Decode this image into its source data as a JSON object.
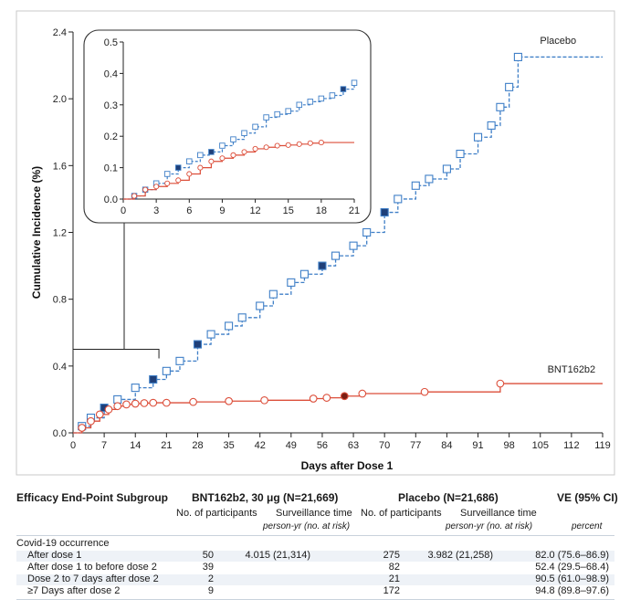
{
  "chart_data": {
    "type": "line",
    "xlabel": "Days after Dose 1",
    "ylabel": "Cumulative Incidence (%)",
    "xticks": [
      0,
      7,
      14,
      21,
      28,
      35,
      42,
      49,
      56,
      63,
      70,
      77,
      84,
      91,
      98,
      105,
      112,
      119
    ],
    "yticks": [
      "0.0",
      "0.4",
      "0.8",
      "1.2",
      "1.6",
      "2.0",
      "2.4"
    ],
    "xlim": [
      0,
      119
    ],
    "ylim": [
      0,
      2.4
    ],
    "series": [
      {
        "name": "Placebo",
        "color": "#3f7fc7",
        "x": [
          0,
          2,
          4,
          7,
          10,
          14,
          18,
          21,
          24,
          28,
          31,
          35,
          38,
          42,
          45,
          49,
          52,
          56,
          59,
          63,
          66,
          70,
          73,
          77,
          80,
          84,
          87,
          91,
          94,
          96,
          98,
          100,
          119
        ],
        "y": [
          0,
          0.04,
          0.09,
          0.15,
          0.2,
          0.27,
          0.32,
          0.37,
          0.43,
          0.53,
          0.59,
          0.64,
          0.69,
          0.76,
          0.83,
          0.9,
          0.95,
          1.0,
          1.06,
          1.12,
          1.2,
          1.32,
          1.4,
          1.48,
          1.52,
          1.58,
          1.67,
          1.77,
          1.84,
          1.95,
          2.07,
          2.25,
          2.25
        ]
      },
      {
        "name": "BNT162b2",
        "color": "#dc4e3a",
        "x": [
          0,
          2,
          4,
          6,
          8,
          10,
          12,
          14,
          16,
          18,
          21,
          27,
          35,
          43,
          54,
          57,
          61,
          65,
          79,
          96,
          119
        ],
        "y": [
          0,
          0.03,
          0.07,
          0.11,
          0.14,
          0.16,
          0.17,
          0.175,
          0.178,
          0.18,
          0.18,
          0.185,
          0.19,
          0.195,
          0.205,
          0.21,
          0.22,
          0.235,
          0.245,
          0.295,
          0.295
        ]
      }
    ],
    "inset": {
      "xlim": [
        0,
        21
      ],
      "ylim": [
        0,
        0.5
      ],
      "xticks": [
        0,
        3,
        6,
        9,
        12,
        15,
        18,
        21
      ],
      "yticks": [
        "0.0",
        "0.1",
        "0.2",
        "0.3",
        "0.4",
        "0.5"
      ],
      "series": [
        {
          "name": "Placebo",
          "x": [
            0,
            1,
            2,
            3,
            4,
            5,
            6,
            7,
            8,
            9,
            10,
            11,
            12,
            13,
            14,
            15,
            16,
            17,
            18,
            19,
            20,
            21
          ],
          "y": [
            0,
            0.01,
            0.03,
            0.05,
            0.08,
            0.1,
            0.12,
            0.14,
            0.15,
            0.17,
            0.19,
            0.21,
            0.23,
            0.26,
            0.27,
            0.28,
            0.3,
            0.31,
            0.32,
            0.33,
            0.35,
            0.37
          ]
        },
        {
          "name": "BNT162b2",
          "x": [
            0,
            1,
            2,
            3,
            4,
            5,
            6,
            7,
            8,
            9,
            10,
            11,
            12,
            13,
            14,
            15,
            16,
            17,
            18,
            21
          ],
          "y": [
            0,
            0.01,
            0.03,
            0.04,
            0.05,
            0.06,
            0.08,
            0.1,
            0.12,
            0.13,
            0.14,
            0.15,
            0.16,
            0.165,
            0.17,
            0.172,
            0.175,
            0.178,
            0.18,
            0.18
          ]
        }
      ]
    }
  },
  "table": {
    "subgroup_header": "Efficacy End-Point Subgroup",
    "bnt_header": "BNT162b2, 30 μg (N=21,669)",
    "placebo_header": "Placebo (N=21,686)",
    "ve_header": "VE (95% CI)",
    "participants_label": "No. of participants",
    "surveillance_label": "Surveillance time",
    "person_yr_label": "person-yr (no. at risk)",
    "percent_label": "percent",
    "section_label": "Covid-19 occurrence",
    "rows": [
      {
        "label": "After dose 1",
        "bnt_n": "50",
        "bnt_time": "4.015 (21,314)",
        "pl_n": "275",
        "pl_time": "3.982 (21,258)",
        "ve": "82.0 (75.6–86.9)"
      },
      {
        "label": "After dose 1 to before dose 2",
        "bnt_n": "39",
        "bnt_time": "",
        "pl_n": "82",
        "pl_time": "",
        "ve": "52.4 (29.5–68.4)"
      },
      {
        "label": "Dose 2 to 7 days after dose 2",
        "bnt_n": "2",
        "bnt_time": "",
        "pl_n": "21",
        "pl_time": "",
        "ve": "90.5 (61.0–98.9)"
      },
      {
        "label": "≥7 Days after dose 2",
        "bnt_n": "9",
        "bnt_time": "",
        "pl_n": "172",
        "pl_time": "",
        "ve": "94.8 (89.8–97.6)"
      }
    ]
  }
}
